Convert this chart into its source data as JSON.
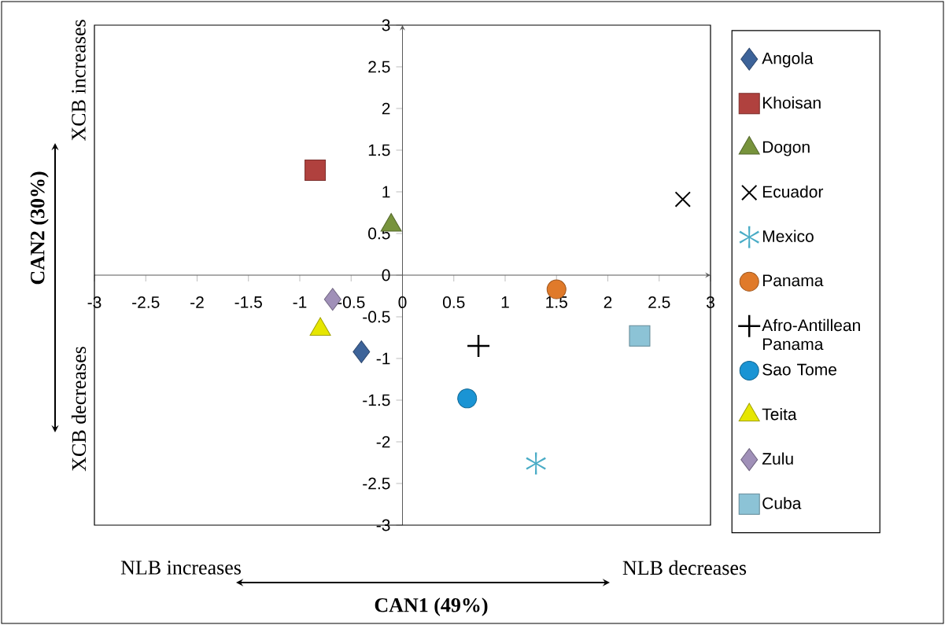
{
  "chart_data": {
    "type": "scatter",
    "xlabel": "CAN1 (49%)",
    "ylabel": "CAN2 (30%)",
    "annotations": [
      "XCB increases",
      "XCB decreases",
      "NLB increases",
      "NLB decreases"
    ],
    "xlim": [
      -3,
      3
    ],
    "ylim": [
      -3,
      3
    ],
    "xticks": [
      -3,
      -2.5,
      -2,
      -1.5,
      -1,
      -0.5,
      0,
      0.5,
      1,
      1.5,
      2,
      2.5,
      3
    ],
    "yticks": [
      -3,
      -2.5,
      -2,
      -1.5,
      -1,
      -0.5,
      0,
      0.5,
      1,
      1.5,
      2,
      2.5,
      3
    ],
    "legend": "right",
    "series": [
      {
        "name": "Angola",
        "color": "#3d6399",
        "marker": "diamond",
        "x": [
          -0.4
        ],
        "values": [
          -0.92
        ]
      },
      {
        "name": "Khoisan",
        "color": "#b0413e",
        "marker": "square",
        "x": [
          -0.85
        ],
        "values": [
          1.26
        ]
      },
      {
        "name": "Dogon",
        "color": "#77933c",
        "marker": "triangle",
        "x": [
          -0.11
        ],
        "values": [
          0.6
        ]
      },
      {
        "name": "Ecuador",
        "color": "#000000",
        "marker": "cross",
        "x": [
          2.73
        ],
        "values": [
          0.91
        ]
      },
      {
        "name": "Mexico",
        "color": "#4aacc6",
        "marker": "star",
        "x": [
          1.3
        ],
        "values": [
          -2.26
        ]
      },
      {
        "name": "Panama",
        "color": "#e07a2a",
        "marker": "circle",
        "x": [
          1.5
        ],
        "values": [
          -0.17
        ]
      },
      {
        "name": "Afro-Antillean Panama",
        "color": "#000000",
        "x": [
          0.74
        ],
        "values": [
          -0.85
        ]
      },
      {
        "name": "Sao Tome",
        "color": "#1a94d4",
        "marker": "circle",
        "x": [
          0.63
        ],
        "values": [
          -1.48
        ]
      },
      {
        "name": "Teita",
        "color": "#e6e600",
        "marker": "triangle",
        "x": [
          -0.8
        ],
        "values": [
          -0.65
        ]
      },
      {
        "name": "Zulu",
        "color": "#a090b8",
        "marker": "diamond",
        "x": [
          -0.68
        ],
        "values": [
          -0.29
        ]
      },
      {
        "name": "Cuba",
        "color": "#8cc3d6",
        "marker": "square",
        "x": [
          2.31
        ],
        "values": [
          -0.73
        ]
      }
    ]
  }
}
